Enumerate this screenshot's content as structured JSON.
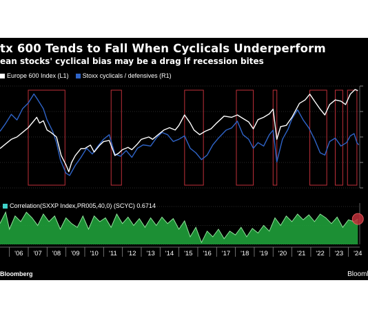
{
  "header": {
    "title": "tx 600 Tends to Fall When Cyclicals Underperform",
    "subtitle": "ean stocks' cyclical bias may be a drag if recession bites"
  },
  "footer": {
    "source": "Bloomberg",
    "brand": "Bloomb"
  },
  "colors": {
    "background": "#000000",
    "index_line": "#ffffff",
    "ratio_line": "#2f64c8",
    "correlation_fill": "#1f9e3a",
    "correlation_line": "#8fe39a",
    "highlight_box": "#c0303a",
    "highlight_dot": "#c0303a"
  },
  "chart_data": [
    {
      "type": "line",
      "legend_position": "top-left",
      "grid": true,
      "x_tick_labels": [
        "'06",
        "'07",
        "'08",
        "'09",
        "'10",
        "'11",
        "'12",
        "'13",
        "'14",
        "'15",
        "'16",
        "'17",
        "'18",
        "'19",
        "'20",
        "'21",
        "'22",
        "'23",
        "'24"
      ],
      "xlim": [
        2005.5,
        2024.6
      ],
      "series": [
        {
          "name": "Europe 600 Index (L1)",
          "axis": "left",
          "ylim": [
            80,
            520
          ],
          "points": [
            [
              2005.5,
              250
            ],
            [
              2005.8,
              270
            ],
            [
              2006.1,
              290
            ],
            [
              2006.4,
              300
            ],
            [
              2006.7,
              320
            ],
            [
              2007.0,
              340
            ],
            [
              2007.3,
              370
            ],
            [
              2007.45,
              385
            ],
            [
              2007.6,
              360
            ],
            [
              2007.8,
              370
            ],
            [
              2008.0,
              330
            ],
            [
              2008.2,
              320
            ],
            [
              2008.5,
              300
            ],
            [
              2008.75,
              220
            ],
            [
              2009.0,
              180
            ],
            [
              2009.15,
              150
            ],
            [
              2009.3,
              190
            ],
            [
              2009.5,
              220
            ],
            [
              2009.8,
              250
            ],
            [
              2010.0,
              250
            ],
            [
              2010.3,
              265
            ],
            [
              2010.5,
              235
            ],
            [
              2010.8,
              265
            ],
            [
              2011.0,
              280
            ],
            [
              2011.3,
              285
            ],
            [
              2011.6,
              220
            ],
            [
              2011.8,
              230
            ],
            [
              2012.0,
              245
            ],
            [
              2012.3,
              255
            ],
            [
              2012.5,
              245
            ],
            [
              2012.8,
              270
            ],
            [
              2013.0,
              290
            ],
            [
              2013.4,
              300
            ],
            [
              2013.6,
              290
            ],
            [
              2013.9,
              310
            ],
            [
              2014.2,
              330
            ],
            [
              2014.5,
              340
            ],
            [
              2014.8,
              330
            ],
            [
              2015.0,
              350
            ],
            [
              2015.3,
              395
            ],
            [
              2015.6,
              360
            ],
            [
              2015.8,
              330
            ],
            [
              2016.1,
              310
            ],
            [
              2016.4,
              325
            ],
            [
              2016.7,
              335
            ],
            [
              2017.0,
              360
            ],
            [
              2017.4,
              390
            ],
            [
              2017.8,
              385
            ],
            [
              2018.1,
              395
            ],
            [
              2018.4,
              380
            ],
            [
              2018.7,
              365
            ],
            [
              2018.95,
              335
            ],
            [
              2019.2,
              375
            ],
            [
              2019.5,
              385
            ],
            [
              2019.8,
              400
            ],
            [
              2020.0,
              420
            ],
            [
              2020.2,
              290
            ],
            [
              2020.4,
              345
            ],
            [
              2020.7,
              350
            ],
            [
              2021.0,
              385
            ],
            [
              2021.4,
              445
            ],
            [
              2021.7,
              460
            ],
            [
              2021.95,
              485
            ],
            [
              2022.2,
              455
            ],
            [
              2022.5,
              420
            ],
            [
              2022.75,
              395
            ],
            [
              2023.0,
              440
            ],
            [
              2023.3,
              460
            ],
            [
              2023.6,
              455
            ],
            [
              2023.85,
              440
            ],
            [
              2024.1,
              485
            ],
            [
              2024.35,
              505
            ],
            [
              2024.5,
              500
            ]
          ]
        },
        {
          "name": "Stoxx cyclicals / defensives (R1)",
          "axis": "right",
          "ylim": [
            0.55,
            1.45
          ],
          "points": [
            [
              2005.5,
              1.05
            ],
            [
              2005.8,
              1.12
            ],
            [
              2006.1,
              1.2
            ],
            [
              2006.4,
              1.15
            ],
            [
              2006.7,
              1.25
            ],
            [
              2007.0,
              1.3
            ],
            [
              2007.3,
              1.38
            ],
            [
              2007.5,
              1.33
            ],
            [
              2007.8,
              1.25
            ],
            [
              2008.0,
              1.15
            ],
            [
              2008.3,
              1.05
            ],
            [
              2008.5,
              0.95
            ],
            [
              2008.7,
              0.8
            ],
            [
              2009.0,
              0.68
            ],
            [
              2009.2,
              0.66
            ],
            [
              2009.5,
              0.75
            ],
            [
              2009.8,
              0.82
            ],
            [
              2010.1,
              0.9
            ],
            [
              2010.4,
              0.85
            ],
            [
              2010.7,
              0.92
            ],
            [
              2011.0,
              0.98
            ],
            [
              2011.3,
              1.02
            ],
            [
              2011.6,
              0.85
            ],
            [
              2011.9,
              0.83
            ],
            [
              2012.2,
              0.88
            ],
            [
              2012.5,
              0.82
            ],
            [
              2012.8,
              0.9
            ],
            [
              2013.1,
              0.93
            ],
            [
              2013.5,
              0.92
            ],
            [
              2013.8,
              0.99
            ],
            [
              2014.1,
              1.04
            ],
            [
              2014.4,
              1.02
            ],
            [
              2014.7,
              0.96
            ],
            [
              2015.0,
              0.98
            ],
            [
              2015.3,
              1.01
            ],
            [
              2015.6,
              0.9
            ],
            [
              2015.9,
              0.86
            ],
            [
              2016.2,
              0.8
            ],
            [
              2016.5,
              0.84
            ],
            [
              2016.8,
              0.93
            ],
            [
              2017.1,
              0.99
            ],
            [
              2017.5,
              1.06
            ],
            [
              2017.8,
              1.08
            ],
            [
              2018.1,
              1.14
            ],
            [
              2018.4,
              1.02
            ],
            [
              2018.7,
              0.98
            ],
            [
              2018.95,
              0.9
            ],
            [
              2019.2,
              0.95
            ],
            [
              2019.5,
              0.92
            ],
            [
              2019.8,
              1.02
            ],
            [
              2020.0,
              1.06
            ],
            [
              2020.2,
              0.78
            ],
            [
              2020.5,
              0.98
            ],
            [
              2020.8,
              1.07
            ],
            [
              2021.0,
              1.16
            ],
            [
              2021.3,
              1.24
            ],
            [
              2021.6,
              1.15
            ],
            [
              2021.9,
              1.08
            ],
            [
              2022.2,
              0.98
            ],
            [
              2022.5,
              0.86
            ],
            [
              2022.75,
              0.84
            ],
            [
              2023.0,
              0.96
            ],
            [
              2023.3,
              0.99
            ],
            [
              2023.6,
              0.92
            ],
            [
              2023.9,
              0.95
            ],
            [
              2024.1,
              1.01
            ],
            [
              2024.3,
              1.03
            ],
            [
              2024.45,
              0.95
            ],
            [
              2024.55,
              0.93
            ]
          ]
        }
      ],
      "annotations": {
        "highlight_periods": [
          [
            2007.0,
            2008.95
          ],
          [
            2011.4,
            2011.95
          ],
          [
            2015.3,
            2016.3
          ],
          [
            2018.05,
            2018.95
          ],
          [
            2020.0,
            2020.2
          ],
          [
            2021.95,
            2022.85
          ],
          [
            2023.3,
            2023.7
          ],
          [
            2023.95,
            2024.45
          ]
        ]
      }
    },
    {
      "type": "area",
      "legend_position": "top-left",
      "grid": true,
      "series": [
        {
          "name": "Correlation(SXXP Index,PR005,40,0) (SCYC) 0.6714",
          "points": [
            [
              2005.5,
              0.55
            ],
            [
              2005.8,
              0.85
            ],
            [
              2006.0,
              0.4
            ],
            [
              2006.3,
              0.75
            ],
            [
              2006.6,
              0.6
            ],
            [
              2006.9,
              0.85
            ],
            [
              2007.2,
              0.7
            ],
            [
              2007.5,
              0.5
            ],
            [
              2007.8,
              0.8
            ],
            [
              2008.1,
              0.6
            ],
            [
              2008.4,
              0.75
            ],
            [
              2008.7,
              0.4
            ],
            [
              2009.0,
              0.7
            ],
            [
              2009.3,
              0.55
            ],
            [
              2009.6,
              0.45
            ],
            [
              2009.9,
              0.75
            ],
            [
              2010.2,
              0.4
            ],
            [
              2010.5,
              0.75
            ],
            [
              2010.8,
              0.6
            ],
            [
              2011.1,
              0.7
            ],
            [
              2011.4,
              0.45
            ],
            [
              2011.7,
              0.8
            ],
            [
              2012.0,
              0.55
            ],
            [
              2012.3,
              0.72
            ],
            [
              2012.6,
              0.5
            ],
            [
              2012.9,
              0.68
            ],
            [
              2013.2,
              0.45
            ],
            [
              2013.5,
              0.7
            ],
            [
              2013.8,
              0.5
            ],
            [
              2014.1,
              0.72
            ],
            [
              2014.4,
              0.55
            ],
            [
              2014.7,
              0.68
            ],
            [
              2015.0,
              0.4
            ],
            [
              2015.3,
              0.62
            ],
            [
              2015.6,
              0.2
            ],
            [
              2015.9,
              0.45
            ],
            [
              2016.2,
              0.05
            ],
            [
              2016.5,
              0.35
            ],
            [
              2016.8,
              0.2
            ],
            [
              2017.1,
              0.4
            ],
            [
              2017.4,
              0.15
            ],
            [
              2017.7,
              0.35
            ],
            [
              2018.0,
              0.25
            ],
            [
              2018.3,
              0.45
            ],
            [
              2018.6,
              0.2
            ],
            [
              2018.9,
              0.42
            ],
            [
              2019.2,
              0.3
            ],
            [
              2019.5,
              0.5
            ],
            [
              2019.8,
              0.35
            ],
            [
              2020.1,
              0.7
            ],
            [
              2020.4,
              0.5
            ],
            [
              2020.7,
              0.75
            ],
            [
              2021.0,
              0.6
            ],
            [
              2021.3,
              0.8
            ],
            [
              2021.6,
              0.65
            ],
            [
              2021.9,
              0.78
            ],
            [
              2022.2,
              0.6
            ],
            [
              2022.5,
              0.8
            ],
            [
              2022.8,
              0.7
            ],
            [
              2023.1,
              0.55
            ],
            [
              2023.4,
              0.72
            ],
            [
              2023.7,
              0.45
            ],
            [
              2024.0,
              0.65
            ],
            [
              2024.3,
              0.6
            ],
            [
              2024.5,
              0.67
            ]
          ]
        }
      ],
      "ylim": [
        0,
        1
      ]
    }
  ]
}
